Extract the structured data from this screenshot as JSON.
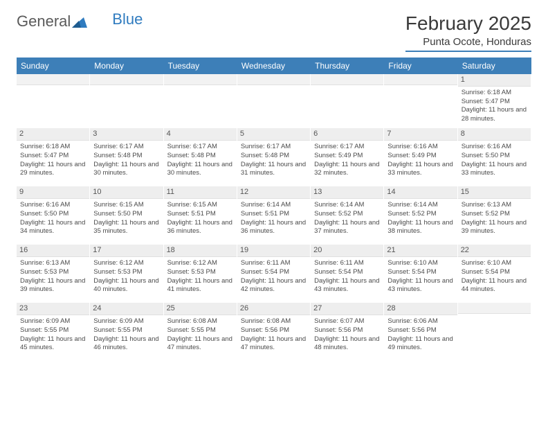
{
  "logo": {
    "part1": "General",
    "part2": "Blue"
  },
  "title": "February 2025",
  "location": "Punta Ocote, Honduras",
  "colors": {
    "header_bar": "#3d7fb8",
    "header_text": "#ffffff",
    "daynum_bg": "#eeeeee",
    "body_text": "#4a4a4a",
    "logo_gray": "#5a5a5a",
    "logo_blue": "#2f7bbf"
  },
  "weekdays": [
    "Sunday",
    "Monday",
    "Tuesday",
    "Wednesday",
    "Thursday",
    "Friday",
    "Saturday"
  ],
  "weeks": [
    [
      {
        "n": "",
        "sr": "",
        "ss": "",
        "dl": ""
      },
      {
        "n": "",
        "sr": "",
        "ss": "",
        "dl": ""
      },
      {
        "n": "",
        "sr": "",
        "ss": "",
        "dl": ""
      },
      {
        "n": "",
        "sr": "",
        "ss": "",
        "dl": ""
      },
      {
        "n": "",
        "sr": "",
        "ss": "",
        "dl": ""
      },
      {
        "n": "",
        "sr": "",
        "ss": "",
        "dl": ""
      },
      {
        "n": "1",
        "sr": "6:18 AM",
        "ss": "5:47 PM",
        "dl": "11 hours and 28 minutes."
      }
    ],
    [
      {
        "n": "2",
        "sr": "6:18 AM",
        "ss": "5:47 PM",
        "dl": "11 hours and 29 minutes."
      },
      {
        "n": "3",
        "sr": "6:17 AM",
        "ss": "5:48 PM",
        "dl": "11 hours and 30 minutes."
      },
      {
        "n": "4",
        "sr": "6:17 AM",
        "ss": "5:48 PM",
        "dl": "11 hours and 30 minutes."
      },
      {
        "n": "5",
        "sr": "6:17 AM",
        "ss": "5:48 PM",
        "dl": "11 hours and 31 minutes."
      },
      {
        "n": "6",
        "sr": "6:17 AM",
        "ss": "5:49 PM",
        "dl": "11 hours and 32 minutes."
      },
      {
        "n": "7",
        "sr": "6:16 AM",
        "ss": "5:49 PM",
        "dl": "11 hours and 33 minutes."
      },
      {
        "n": "8",
        "sr": "6:16 AM",
        "ss": "5:50 PM",
        "dl": "11 hours and 33 minutes."
      }
    ],
    [
      {
        "n": "9",
        "sr": "6:16 AM",
        "ss": "5:50 PM",
        "dl": "11 hours and 34 minutes."
      },
      {
        "n": "10",
        "sr": "6:15 AM",
        "ss": "5:50 PM",
        "dl": "11 hours and 35 minutes."
      },
      {
        "n": "11",
        "sr": "6:15 AM",
        "ss": "5:51 PM",
        "dl": "11 hours and 36 minutes."
      },
      {
        "n": "12",
        "sr": "6:14 AM",
        "ss": "5:51 PM",
        "dl": "11 hours and 36 minutes."
      },
      {
        "n": "13",
        "sr": "6:14 AM",
        "ss": "5:52 PM",
        "dl": "11 hours and 37 minutes."
      },
      {
        "n": "14",
        "sr": "6:14 AM",
        "ss": "5:52 PM",
        "dl": "11 hours and 38 minutes."
      },
      {
        "n": "15",
        "sr": "6:13 AM",
        "ss": "5:52 PM",
        "dl": "11 hours and 39 minutes."
      }
    ],
    [
      {
        "n": "16",
        "sr": "6:13 AM",
        "ss": "5:53 PM",
        "dl": "11 hours and 39 minutes."
      },
      {
        "n": "17",
        "sr": "6:12 AM",
        "ss": "5:53 PM",
        "dl": "11 hours and 40 minutes."
      },
      {
        "n": "18",
        "sr": "6:12 AM",
        "ss": "5:53 PM",
        "dl": "11 hours and 41 minutes."
      },
      {
        "n": "19",
        "sr": "6:11 AM",
        "ss": "5:54 PM",
        "dl": "11 hours and 42 minutes."
      },
      {
        "n": "20",
        "sr": "6:11 AM",
        "ss": "5:54 PM",
        "dl": "11 hours and 43 minutes."
      },
      {
        "n": "21",
        "sr": "6:10 AM",
        "ss": "5:54 PM",
        "dl": "11 hours and 43 minutes."
      },
      {
        "n": "22",
        "sr": "6:10 AM",
        "ss": "5:54 PM",
        "dl": "11 hours and 44 minutes."
      }
    ],
    [
      {
        "n": "23",
        "sr": "6:09 AM",
        "ss": "5:55 PM",
        "dl": "11 hours and 45 minutes."
      },
      {
        "n": "24",
        "sr": "6:09 AM",
        "ss": "5:55 PM",
        "dl": "11 hours and 46 minutes."
      },
      {
        "n": "25",
        "sr": "6:08 AM",
        "ss": "5:55 PM",
        "dl": "11 hours and 47 minutes."
      },
      {
        "n": "26",
        "sr": "6:08 AM",
        "ss": "5:56 PM",
        "dl": "11 hours and 47 minutes."
      },
      {
        "n": "27",
        "sr": "6:07 AM",
        "ss": "5:56 PM",
        "dl": "11 hours and 48 minutes."
      },
      {
        "n": "28",
        "sr": "6:06 AM",
        "ss": "5:56 PM",
        "dl": "11 hours and 49 minutes."
      },
      {
        "n": "",
        "sr": "",
        "ss": "",
        "dl": ""
      }
    ]
  ],
  "labels": {
    "sunrise": "Sunrise:",
    "sunset": "Sunset:",
    "daylight": "Daylight:"
  }
}
